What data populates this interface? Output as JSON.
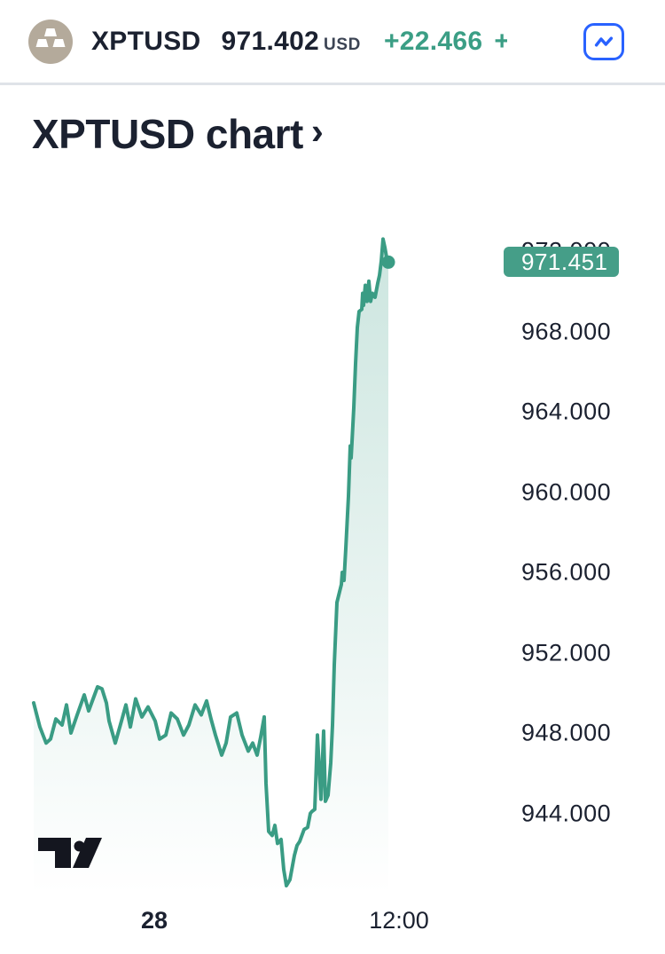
{
  "header": {
    "symbol": "XPTUSD",
    "price": "971.402",
    "currency": "USD",
    "change": "+22.466",
    "clipped_change": "+"
  },
  "title": {
    "text": "XPTUSD chart",
    "chevron": "›"
  },
  "icons": {
    "header_symbol": "platinum-ingots-icon",
    "header_button": "line-chart-icon",
    "title_chevron": "chevron-right-icon",
    "watermark": "tradingview-logo"
  },
  "colors": {
    "text_dark": "#1b2130",
    "divider": "#dfe3e8",
    "button_blue": "#2962ff",
    "symbol_icon_bg": "#b4aa9b",
    "change_green": "#3b9e85"
  },
  "chart_data": {
    "type": "area",
    "symbol": "XPTUSD",
    "title": "XPTUSD chart",
    "last_price": 971.451,
    "last_price_label": "971.451",
    "line_color": "#3a9c84",
    "badge_color": "#459e88",
    "fill_top": "rgba(58,156,132,0.26)",
    "fill_bottom": "rgba(58,156,132,0)",
    "grid": false,
    "y_axis": {
      "side": "right",
      "top_tick_value": 972,
      "tick_step": 4,
      "ticks": [
        "972.000",
        "968.000",
        "964.000",
        "960.000",
        "956.000",
        "952.000",
        "948.000",
        "944.000"
      ],
      "range_shown": [
        940.0,
        973.5
      ]
    },
    "x_axis": {
      "ticks": [
        {
          "label": "28",
          "bold": true
        },
        {
          "label": "12:00",
          "bold": false
        }
      ]
    },
    "series_note": "pairs of [relative_time_percent, price_usd]",
    "series": [
      [
        0,
        949.5
      ],
      [
        1.75,
        948.3
      ],
      [
        3.5,
        947.5
      ],
      [
        4.75,
        947.7
      ],
      [
        6.25,
        948.7
      ],
      [
        8,
        948.4
      ],
      [
        9.25,
        949.4
      ],
      [
        10.5,
        948.0
      ],
      [
        12.25,
        948.9
      ],
      [
        14.25,
        949.9
      ],
      [
        15.5,
        949.1
      ],
      [
        16.75,
        949.7
      ],
      [
        18,
        950.3
      ],
      [
        19.25,
        950.2
      ],
      [
        20.5,
        949.5
      ],
      [
        21.25,
        948.6
      ],
      [
        23,
        947.5
      ],
      [
        24.75,
        948.6
      ],
      [
        26,
        949.4
      ],
      [
        27.25,
        948.3
      ],
      [
        28.75,
        949.7
      ],
      [
        30.5,
        948.8
      ],
      [
        32.25,
        949.3
      ],
      [
        34.25,
        948.6
      ],
      [
        35.5,
        947.7
      ],
      [
        37.25,
        947.9
      ],
      [
        38.75,
        949.0
      ],
      [
        40.5,
        948.7
      ],
      [
        42.25,
        947.9
      ],
      [
        43.75,
        948.4
      ],
      [
        45.5,
        949.4
      ],
      [
        47.25,
        948.9
      ],
      [
        48.75,
        949.6
      ],
      [
        50,
        948.7
      ],
      [
        51.25,
        947.9
      ],
      [
        53,
        946.9
      ],
      [
        54.25,
        947.5
      ],
      [
        55.5,
        948.8
      ],
      [
        57.25,
        949.0
      ],
      [
        58.75,
        947.9
      ],
      [
        60.5,
        947.1
      ],
      [
        61.75,
        947.5
      ],
      [
        63,
        946.9
      ],
      [
        64,
        947.8
      ],
      [
        65,
        948.8
      ],
      [
        65.5,
        945.5
      ],
      [
        66.25,
        943.1
      ],
      [
        67.25,
        942.9
      ],
      [
        68,
        943.4
      ],
      [
        68.75,
        942.5
      ],
      [
        69.75,
        942.7
      ],
      [
        70.5,
        941.2
      ],
      [
        71.25,
        940.4
      ],
      [
        72.25,
        940.7
      ],
      [
        73.5,
        941.9
      ],
      [
        74.25,
        942.4
      ],
      [
        75,
        942.6
      ],
      [
        76.25,
        943.2
      ],
      [
        77.25,
        943.3
      ],
      [
        78,
        944.0
      ],
      [
        78.5,
        944.1
      ],
      [
        79.25,
        944.2
      ],
      [
        80,
        947.9
      ],
      [
        81,
        944.7
      ],
      [
        81.75,
        948.1
      ],
      [
        82.25,
        944.6
      ],
      [
        83,
        944.9
      ],
      [
        83.75,
        946.5
      ],
      [
        84.25,
        948.4
      ],
      [
        84.75,
        951.4
      ],
      [
        85.5,
        954.5
      ],
      [
        86.75,
        955.4
      ],
      [
        87,
        956.0
      ],
      [
        87.5,
        955.6
      ],
      [
        88,
        957.2
      ],
      [
        88.75,
        959.8
      ],
      [
        89.25,
        962.3
      ],
      [
        89.5,
        961.7
      ],
      [
        89.75,
        962.5
      ],
      [
        90.25,
        964.2
      ],
      [
        90.75,
        966.4
      ],
      [
        91.25,
        968.2
      ],
      [
        91.75,
        969.0
      ],
      [
        92.5,
        969.1
      ],
      [
        92.75,
        969.9
      ],
      [
        93,
        969.3
      ],
      [
        93.5,
        970.3
      ],
      [
        94,
        969.5
      ],
      [
        94.5,
        970.5
      ],
      [
        95,
        969.5
      ],
      [
        95.5,
        969.9
      ],
      [
        96.25,
        969.7
      ],
      [
        97,
        970.4
      ],
      [
        97.5,
        970.8
      ],
      [
        98,
        971.5
      ],
      [
        98.5,
        972.6
      ],
      [
        99,
        972.2
      ],
      [
        99.5,
        971.7
      ],
      [
        100,
        971.451
      ]
    ]
  },
  "watermark": "TradingView"
}
